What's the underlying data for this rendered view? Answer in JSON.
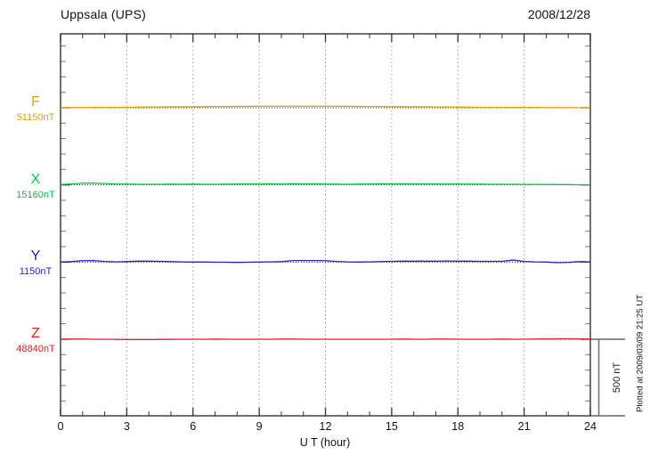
{
  "header": {
    "title": "Uppsala (UPS)",
    "date": "2008/12/28"
  },
  "chart_data": {
    "type": "line",
    "title": "Uppsala (UPS)",
    "date": "2008/12/28",
    "xlabel": "U T (hour)",
    "x_range": [
      0,
      24
    ],
    "x_ticks": [
      0,
      3,
      6,
      9,
      12,
      15,
      18,
      21,
      24
    ],
    "x_minor_tick_hours": 1,
    "grid": "dotted vertical lines at every 3 hours; dotted horizontal baseline per trace",
    "trace_spacing_nT": 500,
    "y_minor_tick_nT": 100,
    "scale_bar": {
      "label": "500 nT",
      "nT": 500
    },
    "plotted_at": "Plotted at 2009/03/09 21:25 UT",
    "sample_step_hours": 0.5,
    "series": [
      {
        "name": "F",
        "base_label": "51150nT",
        "base_nT": 51150,
        "color": "#E8A000",
        "deviations_nT": [
          0,
          1,
          1,
          2,
          2,
          3,
          3,
          4,
          5,
          5,
          6,
          6,
          7,
          7,
          8,
          8,
          9,
          9,
          10,
          10,
          10,
          10,
          10,
          10,
          10,
          10,
          9,
          9,
          8,
          8,
          7,
          7,
          6,
          6,
          5,
          5,
          4,
          4,
          3,
          3,
          3,
          2,
          2,
          2,
          1,
          1,
          1,
          0,
          0
        ]
      },
      {
        "name": "X",
        "base_label": "15160nT",
        "base_nT": 15160,
        "color": "#00C840",
        "deviations_nT": [
          2,
          6,
          11,
          12,
          9,
          6,
          5,
          4,
          4,
          4,
          5,
          4,
          5,
          4,
          4,
          5,
          5,
          6,
          5,
          7,
          5,
          8,
          6,
          7,
          5,
          5,
          4,
          5,
          6,
          7,
          6,
          7,
          6,
          6,
          6,
          5,
          6,
          5,
          5,
          4,
          4,
          4,
          3,
          3,
          3,
          2,
          2,
          1,
          1
        ]
      },
      {
        "name": "Y",
        "base_label": "1150nT",
        "base_nT": 1150,
        "color": "#2222CC",
        "deviations_nT": [
          0,
          3,
          9,
          10,
          4,
          1,
          3,
          6,
          6,
          5,
          3,
          1,
          0,
          0,
          -1,
          -1,
          -2,
          -1,
          0,
          1,
          3,
          9,
          10,
          10,
          9,
          4,
          1,
          0,
          1,
          3,
          5,
          6,
          6,
          6,
          6,
          7,
          6,
          6,
          5,
          5,
          5,
          13,
          4,
          1,
          0,
          -4,
          -2,
          3,
          1
        ]
      },
      {
        "name": "Z",
        "base_label": "48840nT",
        "base_nT": 48840,
        "color": "#DD2222",
        "deviations_nT": [
          0,
          1,
          1,
          0,
          0,
          -1,
          -2,
          -2,
          -2,
          -1,
          -1,
          0,
          0,
          0,
          1,
          0,
          0,
          0,
          0,
          0,
          1,
          1,
          0,
          0,
          0,
          0,
          0,
          0,
          0,
          0,
          0,
          1,
          0,
          0,
          1,
          1,
          0,
          0,
          0,
          0,
          1,
          0,
          0,
          1,
          2,
          3,
          3,
          2,
          1
        ]
      }
    ]
  }
}
